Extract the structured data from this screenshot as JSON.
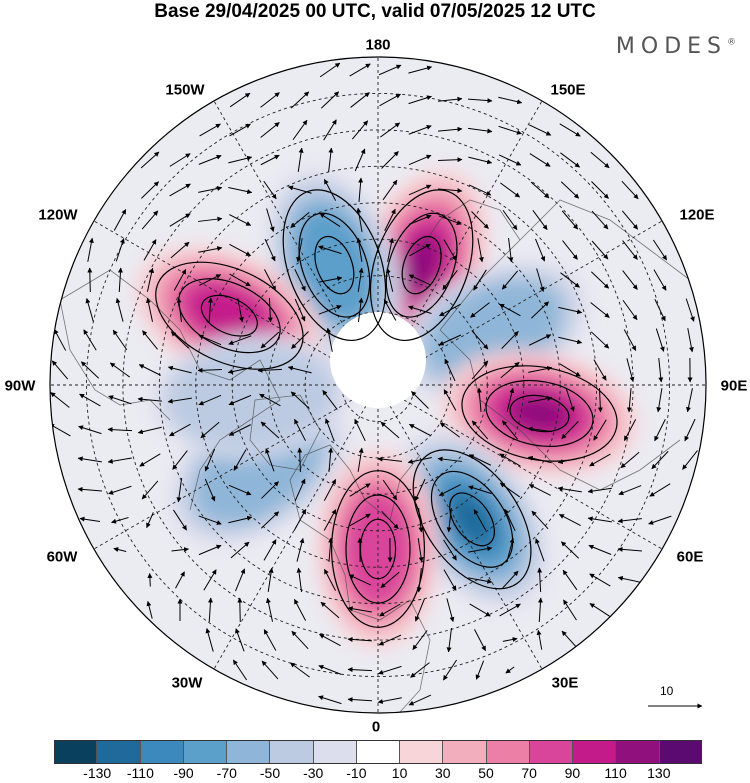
{
  "title": "Base 29/04/2025 00 UTC, valid 07/05/2025 12 UTC",
  "logo": "MODES",
  "logo_mark": "®",
  "longitude_labels": {
    "top": "180",
    "top_left": "150W",
    "top_right": "150E",
    "upper_left": "120W",
    "upper_right": "120E",
    "left": "90W",
    "right": "90E",
    "lower_left": "60W",
    "lower_right": "60E",
    "bottom_left": "30W",
    "bottom_right": "30E",
    "bottom": "0"
  },
  "reference_vector_label": "10",
  "colorbar": {
    "colors": [
      "#08405e",
      "#1f6a9a",
      "#3c89bd",
      "#5b9fcb",
      "#8fb6d8",
      "#bccbe2",
      "#dddeed",
      "#ffffff",
      "#f8d5d8",
      "#f2aebd",
      "#ec7fa6",
      "#d9459a",
      "#c41b8b",
      "#90107e",
      "#5b0a72"
    ],
    "tick_labels": [
      "-130",
      "-110",
      "-90",
      "-70",
      "-50",
      "-30",
      "-10",
      "10",
      "30",
      "50",
      "70",
      "90",
      "110",
      "130"
    ]
  },
  "anomaly_centers": [
    {
      "lon": 160,
      "lat": 55,
      "value": 100
    },
    {
      "lon": -160,
      "lat": 55,
      "value": -75
    },
    {
      "lon": -115,
      "lat": 45,
      "value": 80
    },
    {
      "lon": 115,
      "lat": 55,
      "value": -45
    },
    {
      "lon": 80,
      "lat": 45,
      "value": 110
    },
    {
      "lon": 35,
      "lat": 45,
      "value": -100
    },
    {
      "lon": 0,
      "lat": 45,
      "value": 70
    },
    {
      "lon": -55,
      "lat": 50,
      "value": -40
    },
    {
      "lon": -85,
      "lat": 55,
      "value": -30
    }
  ]
}
